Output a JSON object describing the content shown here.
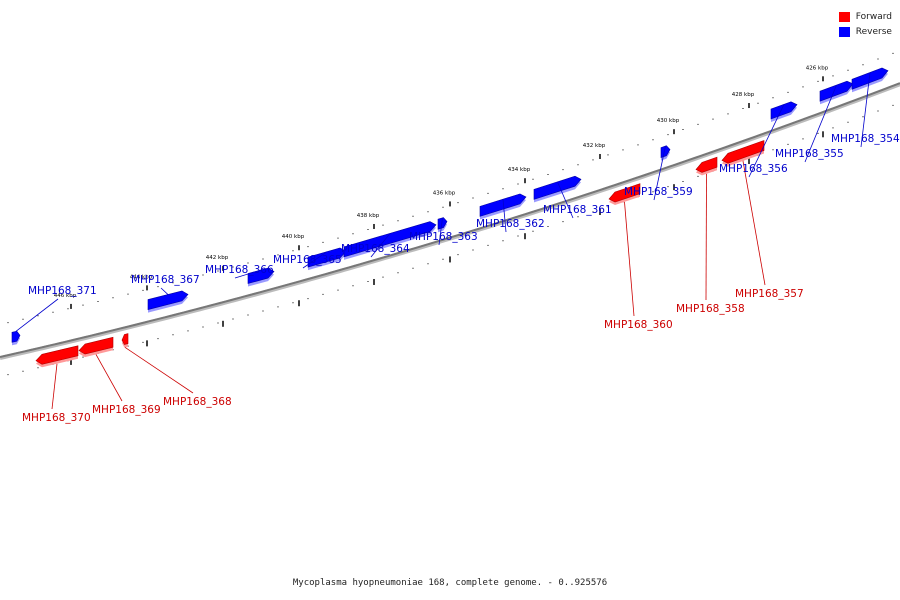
{
  "legend": {
    "forward": {
      "label": "Forward",
      "color": "#ff0000"
    },
    "reverse": {
      "label": "Reverse",
      "color": "#0000ff"
    }
  },
  "caption": "Mycoplasma hyopneumoniae 168, complete genome. - 0..925576",
  "axis_labels": [
    "446 kbp",
    "444 kbp",
    "442 kbp",
    "440 kbp",
    "438 kbp",
    "436 kbp",
    "434 kbp",
    "432 kbp",
    "430 kbp",
    "428 kbp",
    "426 kbp"
  ],
  "genes": [
    {
      "id": "MHP168_371",
      "strand": "reverse"
    },
    {
      "id": "MHP168_370",
      "strand": "forward"
    },
    {
      "id": "MHP168_369",
      "strand": "forward"
    },
    {
      "id": "MHP168_368",
      "strand": "forward"
    },
    {
      "id": "MHP168_367",
      "strand": "reverse"
    },
    {
      "id": "MHP168_366",
      "strand": "reverse"
    },
    {
      "id": "MHP168_365",
      "strand": "reverse"
    },
    {
      "id": "MHP168_364",
      "strand": "reverse"
    },
    {
      "id": "MHP168_363",
      "strand": "reverse"
    },
    {
      "id": "MHP168_362",
      "strand": "reverse"
    },
    {
      "id": "MHP168_361",
      "strand": "reverse"
    },
    {
      "id": "MHP168_360",
      "strand": "forward"
    },
    {
      "id": "MHP168_359",
      "strand": "reverse"
    },
    {
      "id": "MHP168_358",
      "strand": "forward"
    },
    {
      "id": "MHP168_357",
      "strand": "forward"
    },
    {
      "id": "MHP168_356",
      "strand": "reverse"
    },
    {
      "id": "MHP168_355",
      "strand": "reverse"
    },
    {
      "id": "MHP168_354",
      "strand": "reverse"
    }
  ]
}
